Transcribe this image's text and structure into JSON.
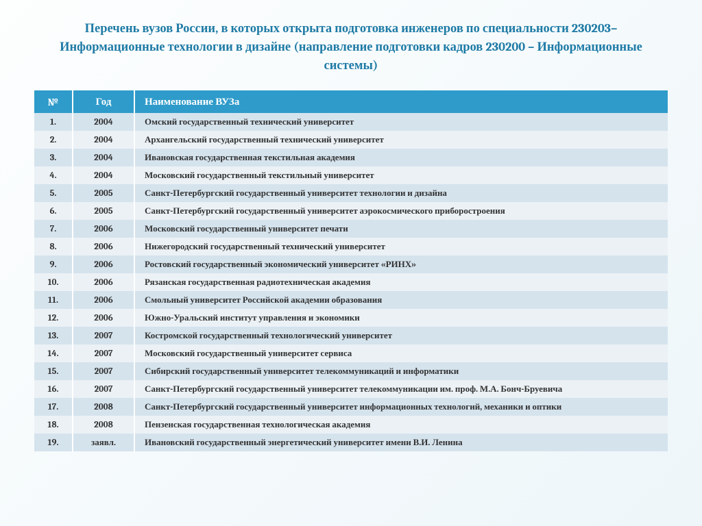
{
  "title": "Перечень вузов России, в которых открыта подготовка инженеров по специальности 230203–Информационные технологии в дизайне (направление подготовки кадров 230200 – Информационные системы)",
  "table": {
    "headers": {
      "num": "№",
      "year": "Год",
      "name": "Наименование ВУЗа"
    },
    "col_widths": {
      "num": 56,
      "year": 90
    },
    "header_bg": "#2e9bca",
    "header_color": "#ffffff",
    "row_odd_bg": "#d5e3ed",
    "row_even_bg": "#ebf1f5",
    "title_color": "#1f7ba6",
    "title_fontsize": 18.5,
    "cell_fontsize": 13,
    "header_fontsize": 15,
    "rows": [
      {
        "num": "1.",
        "year": "2004",
        "name": "Омский государственный технический университет"
      },
      {
        "num": "2.",
        "year": "2004",
        "name": "Архангельский государственный технический университет"
      },
      {
        "num": "3.",
        "year": "2004",
        "name": "Ивановская государственная текстильная академия"
      },
      {
        "num": "4.",
        "year": "2004",
        "name": "Московский государственный текстильный университет"
      },
      {
        "num": "5.",
        "year": "2005",
        "name": "Санкт-Петербургский государственный университет технологии и дизайна"
      },
      {
        "num": "6.",
        "year": "2005",
        "name": "Санкт-Петербургский государственный университет аэрокосмического приборостроения"
      },
      {
        "num": "7.",
        "year": "2006",
        "name": "Московский государственный университет печати"
      },
      {
        "num": "8.",
        "year": "2006",
        "name": "Нижегородский государственный технический университет"
      },
      {
        "num": "9.",
        "year": "2006",
        "name": "Ростовский государственный экономический университет «РИНХ»"
      },
      {
        "num": "10.",
        "year": "2006",
        "name": "Рязанская государственная радиотехническая академия"
      },
      {
        "num": "11.",
        "year": "2006",
        "name": "Смольный университет Российской академии образования"
      },
      {
        "num": "12.",
        "year": "2006",
        "name": "Южно-Уральский институт управления и экономики"
      },
      {
        "num": "13.",
        "year": "2007",
        "name": "Костромской государственный технологический университет"
      },
      {
        "num": "14.",
        "year": "2007",
        "name": "Московский государственный университет сервиса"
      },
      {
        "num": "15.",
        "year": "2007",
        "name": "Сибирский государственный университет телекоммуникаций и информатики"
      },
      {
        "num": "16.",
        "year": "2007",
        "name": "Санкт-Петербургский государственный университет телекоммуникации им. проф. М.А. Бонч-Бруевича"
      },
      {
        "num": "17.",
        "year": "2008",
        "name": "Санкт-Петербургский государственный университет информационных технологий, механики и оптики"
      },
      {
        "num": "18.",
        "year": "2008",
        "name": "Пензенская государственная технологическая академия"
      },
      {
        "num": "19.",
        "year": "заявл.",
        "name": "Ивановский государственный энергетический университет имени В.И. Ленина"
      }
    ]
  }
}
